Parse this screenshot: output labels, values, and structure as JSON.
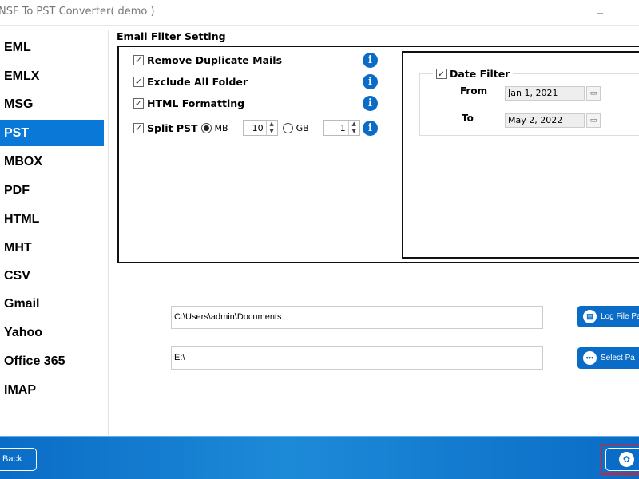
{
  "window": {
    "title": "NSF To PST Converter( demo )",
    "minimize": "_"
  },
  "sidebar": {
    "items": [
      {
        "label": "EML"
      },
      {
        "label": "EMLX"
      },
      {
        "label": "MSG"
      },
      {
        "label": "PST",
        "selected": true
      },
      {
        "label": "MBOX"
      },
      {
        "label": "PDF"
      },
      {
        "label": "HTML"
      },
      {
        "label": "MHT"
      },
      {
        "label": "CSV"
      },
      {
        "label": "Gmail"
      },
      {
        "label": "Yahoo"
      },
      {
        "label": "Office 365"
      },
      {
        "label": "IMAP"
      }
    ]
  },
  "filter": {
    "title": "Email Filter Setting",
    "options": [
      {
        "label": "Remove Duplicate Mails",
        "checked": true
      },
      {
        "label": "Exclude All Folder",
        "checked": true
      },
      {
        "label": "HTML Formatting",
        "checked": true
      },
      {
        "label": "Split PST",
        "checked": true
      }
    ],
    "split": {
      "mb_label": "MB",
      "mb_value": "10",
      "gb_label": "GB",
      "gb_value": "1",
      "selected_unit": "MB"
    },
    "check_glyph": "✓",
    "info_glyph": "i",
    "date": {
      "label": "Date Filter",
      "checked": true,
      "from_label": "From",
      "from_value": "Jan 1, 2021",
      "to_label": "To",
      "to_value": "May 2, 2022"
    }
  },
  "paths": {
    "log_path": "C:\\Users\\admin\\Documents",
    "log_button": "Log File Pa",
    "output_path": "E:\\",
    "select_button": "Select Pa"
  },
  "footer": {
    "back": "Back"
  },
  "colors": {
    "accent": "#0a78d7",
    "button": "#0a6cc6",
    "highlight": "#d9202a"
  }
}
